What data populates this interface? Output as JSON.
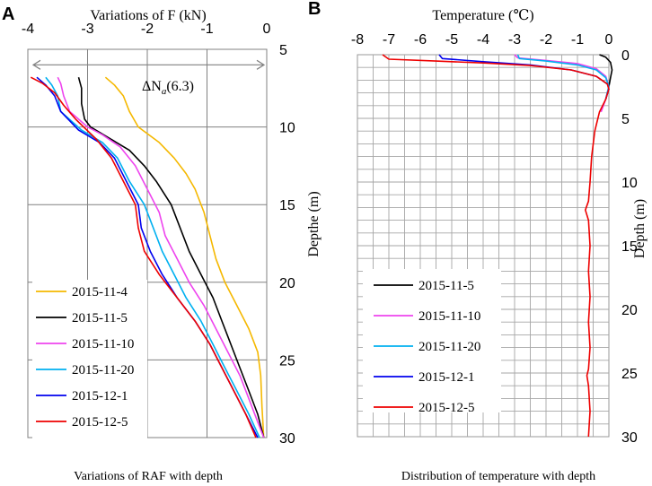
{
  "chart_data": [
    {
      "panel_label": "A",
      "type": "line",
      "title": "Variations of F (kN)",
      "caption": "Variations of RAF with depth",
      "xlabel": "Variations of F (kN)",
      "ylabel": "Depthe (m)",
      "xlim": [
        -4,
        0
      ],
      "ylim": [
        5,
        30
      ],
      "x_ticks": [
        "-4",
        "-3",
        "-2",
        "-1",
        "0"
      ],
      "y_ticks": [
        "5",
        "10",
        "15",
        "20",
        "25",
        "30"
      ],
      "grid": true,
      "annotation": {
        "text": "ΔN",
        "subscript": "a",
        "value_text": "(6.3)",
        "arrow_depth": 6.0
      },
      "legend_position": "bottom-left",
      "series": [
        {
          "name": "2015-11-4",
          "color": "#f5b800",
          "points": [
            [
              -2.7,
              6.8
            ],
            [
              -2.55,
              7.3
            ],
            [
              -2.4,
              8.0
            ],
            [
              -2.3,
              9.0
            ],
            [
              -2.15,
              10.0
            ],
            [
              -1.8,
              11.0
            ],
            [
              -1.55,
              12.0
            ],
            [
              -1.35,
              13.0
            ],
            [
              -1.2,
              14.0
            ],
            [
              -1.05,
              15.5
            ],
            [
              -0.95,
              17.0
            ],
            [
              -0.85,
              18.5
            ],
            [
              -0.7,
              20.0
            ],
            [
              -0.5,
              21.5
            ],
            [
              -0.3,
              23.0
            ],
            [
              -0.15,
              24.5
            ],
            [
              -0.1,
              26.0
            ],
            [
              -0.08,
              28.0
            ],
            [
              -0.05,
              30.0
            ]
          ]
        },
        {
          "name": "2015-11-5",
          "color": "#000000",
          "points": [
            [
              -3.15,
              6.8
            ],
            [
              -3.1,
              7.5
            ],
            [
              -3.1,
              8.5
            ],
            [
              -3.05,
              9.5
            ],
            [
              -2.95,
              10.0
            ],
            [
              -2.6,
              10.8
            ],
            [
              -2.3,
              11.5
            ],
            [
              -2.05,
              12.5
            ],
            [
              -1.85,
              13.5
            ],
            [
              -1.6,
              15.0
            ],
            [
              -1.45,
              16.5
            ],
            [
              -1.3,
              18.0
            ],
            [
              -1.1,
              19.5
            ],
            [
              -0.9,
              21.0
            ],
            [
              -0.75,
              22.5
            ],
            [
              -0.6,
              24.0
            ],
            [
              -0.45,
              25.5
            ],
            [
              -0.3,
              27.0
            ],
            [
              -0.15,
              28.5
            ],
            [
              -0.05,
              30.0
            ]
          ]
        },
        {
          "name": "2015-11-10",
          "color": "#ee44ee",
          "points": [
            [
              -3.5,
              6.8
            ],
            [
              -3.45,
              7.2
            ],
            [
              -3.4,
              8.0
            ],
            [
              -3.3,
              9.0
            ],
            [
              -3.0,
              10.0
            ],
            [
              -2.75,
              10.5
            ],
            [
              -2.45,
              11.3
            ],
            [
              -2.2,
              12.5
            ],
            [
              -2.0,
              14.0
            ],
            [
              -1.8,
              15.5
            ],
            [
              -1.7,
              17.0
            ],
            [
              -1.5,
              18.5
            ],
            [
              -1.3,
              20.0
            ],
            [
              -1.05,
              21.5
            ],
            [
              -0.85,
              23.0
            ],
            [
              -0.65,
              24.5
            ],
            [
              -0.45,
              26.0
            ],
            [
              -0.3,
              27.5
            ],
            [
              -0.15,
              29.0
            ],
            [
              -0.05,
              30.0
            ]
          ]
        },
        {
          "name": "2015-11-20",
          "color": "#00b0f0",
          "points": [
            [
              -3.7,
              6.8
            ],
            [
              -3.6,
              7.3
            ],
            [
              -3.5,
              8.0
            ],
            [
              -3.45,
              9.0
            ],
            [
              -3.1,
              10.2
            ],
            [
              -2.75,
              11.0
            ],
            [
              -2.5,
              12.0
            ],
            [
              -2.3,
              13.5
            ],
            [
              -2.05,
              15.0
            ],
            [
              -1.9,
              16.5
            ],
            [
              -1.75,
              18.0
            ],
            [
              -1.55,
              19.5
            ],
            [
              -1.35,
              21.0
            ],
            [
              -1.1,
              22.5
            ],
            [
              -0.9,
              24.0
            ],
            [
              -0.7,
              25.5
            ],
            [
              -0.5,
              27.0
            ],
            [
              -0.3,
              28.5
            ],
            [
              -0.12,
              30.0
            ]
          ]
        },
        {
          "name": "2015-12-1",
          "color": "#0000ee",
          "points": [
            [
              -3.85,
              6.8
            ],
            [
              -3.7,
              7.3
            ],
            [
              -3.55,
              8.0
            ],
            [
              -3.45,
              9.0
            ],
            [
              -3.15,
              10.2
            ],
            [
              -2.8,
              11.0
            ],
            [
              -2.55,
              12.0
            ],
            [
              -2.35,
              13.5
            ],
            [
              -2.15,
              15.0
            ],
            [
              -2.1,
              16.5
            ],
            [
              -1.95,
              18.0
            ],
            [
              -1.75,
              19.5
            ],
            [
              -1.5,
              21.0
            ],
            [
              -1.2,
              22.5
            ],
            [
              -0.95,
              24.0
            ],
            [
              -0.75,
              25.5
            ],
            [
              -0.55,
              27.0
            ],
            [
              -0.35,
              28.5
            ],
            [
              -0.15,
              30.0
            ]
          ]
        },
        {
          "name": "2015-12-5",
          "color": "#ee0000",
          "points": [
            [
              -3.95,
              6.8
            ],
            [
              -3.75,
              7.2
            ],
            [
              -3.55,
              7.8
            ],
            [
              -3.4,
              8.6
            ],
            [
              -3.2,
              9.5
            ],
            [
              -2.85,
              10.8
            ],
            [
              -2.6,
              12.0
            ],
            [
              -2.4,
              13.5
            ],
            [
              -2.2,
              15.0
            ],
            [
              -2.15,
              16.5
            ],
            [
              -2.05,
              18.0
            ],
            [
              -1.8,
              19.5
            ],
            [
              -1.5,
              21.0
            ],
            [
              -1.2,
              22.5
            ],
            [
              -0.95,
              24.0
            ],
            [
              -0.75,
              25.5
            ],
            [
              -0.55,
              27.0
            ],
            [
              -0.35,
              28.5
            ],
            [
              -0.18,
              30.0
            ]
          ]
        }
      ]
    },
    {
      "panel_label": "B",
      "type": "line",
      "title": "Temperature (℃)",
      "caption": "Distribution of temperature with depth",
      "xlabel": "Temperature (℃)",
      "ylabel": "Depth (m)",
      "xlim": [
        -8,
        0
      ],
      "ylim": [
        0,
        30
      ],
      "x_ticks": [
        "-8",
        "-7",
        "-6",
        "-5",
        "-4",
        "-3",
        "-2",
        "-1",
        "0"
      ],
      "y_ticks": [
        "0",
        "5",
        "10",
        "15",
        "20",
        "25",
        "30"
      ],
      "grid": true,
      "legend_position": "bottom-left",
      "series": [
        {
          "name": "2015-11-5",
          "color": "#000000",
          "points": [
            [
              -0.3,
              0.0
            ],
            [
              -0.1,
              0.2
            ],
            [
              0.05,
              0.6
            ],
            [
              0.1,
              1.2
            ],
            [
              0.05,
              1.8
            ],
            [
              0.0,
              2.5
            ],
            [
              -0.1,
              3.5
            ]
          ]
        },
        {
          "name": "2015-11-10",
          "color": "#ee44ee",
          "points": [
            [
              -3.0,
              0.0
            ],
            [
              -2.9,
              0.25
            ],
            [
              -2.0,
              0.45
            ],
            [
              -1.0,
              0.7
            ],
            [
              -0.4,
              1.1
            ],
            [
              -0.1,
              1.7
            ],
            [
              0.0,
              2.5
            ],
            [
              -0.1,
              3.5
            ],
            [
              -0.25,
              4.5
            ]
          ]
        },
        {
          "name": "2015-11-20",
          "color": "#00b0f0",
          "points": [
            [
              -2.9,
              0.0
            ],
            [
              -2.85,
              0.3
            ],
            [
              -2.0,
              0.5
            ],
            [
              -1.0,
              0.8
            ],
            [
              -0.4,
              1.2
            ],
            [
              -0.1,
              1.8
            ],
            [
              0.0,
              2.5
            ],
            [
              -0.1,
              3.5
            ]
          ]
        },
        {
          "name": "2015-12-1",
          "color": "#0000ee",
          "points": [
            [
              -5.4,
              0.0
            ],
            [
              -5.3,
              0.3
            ],
            [
              -4.0,
              0.55
            ],
            [
              -2.5,
              0.8
            ],
            [
              -1.2,
              1.2
            ],
            [
              -0.4,
              1.7
            ],
            [
              -0.05,
              2.3
            ],
            [
              0.0,
              2.7
            ],
            [
              -0.1,
              3.5
            ]
          ]
        },
        {
          "name": "2015-12-5",
          "color": "#ee0000",
          "points": [
            [
              -7.2,
              0.0
            ],
            [
              -7.0,
              0.35
            ],
            [
              -5.5,
              0.5
            ],
            [
              -4.0,
              0.65
            ],
            [
              -2.5,
              0.85
            ],
            [
              -1.2,
              1.2
            ],
            [
              -0.4,
              1.7
            ],
            [
              -0.05,
              2.3
            ],
            [
              0.0,
              2.7
            ],
            [
              -0.1,
              3.5
            ],
            [
              -0.3,
              4.5
            ],
            [
              -0.45,
              6
            ],
            [
              -0.55,
              8
            ],
            [
              -0.6,
              10
            ],
            [
              -0.65,
              11.5
            ],
            [
              -0.75,
              12.2
            ],
            [
              -0.65,
              13
            ],
            [
              -0.6,
              15
            ],
            [
              -0.65,
              17
            ],
            [
              -0.6,
              19
            ],
            [
              -0.65,
              21
            ],
            [
              -0.6,
              23
            ],
            [
              -0.65,
              24.7
            ],
            [
              -0.7,
              25.2
            ],
            [
              -0.65,
              26
            ],
            [
              -0.6,
              28
            ],
            [
              -0.65,
              30.0
            ]
          ]
        }
      ]
    }
  ]
}
